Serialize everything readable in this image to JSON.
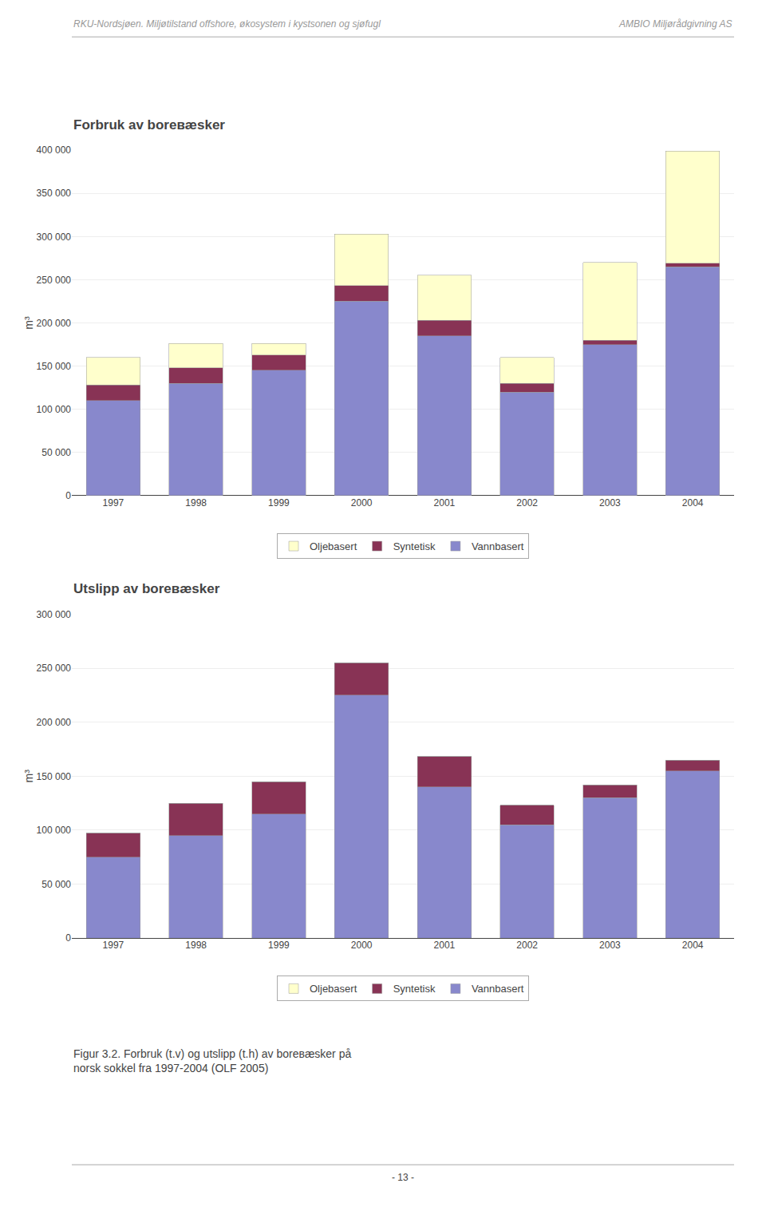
{
  "header_left": "RKU-Nordsjøen. Miljøtilstand offshore, økosystem i kystsonen og sjøfugl",
  "header_right": "AMBIO Miljørådgivning AS",
  "caption": "Figur 3.2. Forbruk (t.v) og utslipp (t.h) av borевæsker på\nnorsk sokkel fra 1997-2004 (OLF 2005)",
  "page_number": "- 13 -",
  "chart_data": [
    {
      "type": "bar",
      "title": "Forbruk av borевæsker",
      "categories": [
        "1997",
        "1998",
        "1999",
        "2000",
        "2001",
        "2002",
        "2003",
        "2004"
      ],
      "series": [
        {
          "name": "Vannbasert",
          "color": "#8888CC",
          "values": [
            110000,
            130000,
            145000,
            225000,
            185000,
            120000,
            175000,
            265000
          ]
        },
        {
          "name": "Syntetisk",
          "color": "#883355",
          "values": [
            18000,
            18000,
            18000,
            18000,
            18000,
            10000,
            5000,
            4000
          ]
        },
        {
          "name": "Oljebasert",
          "color": "#FFFFCC",
          "values": [
            32000,
            28000,
            13000,
            60000,
            52000,
            30000,
            90000,
            130000
          ]
        }
      ],
      "ylabel": "m³",
      "ylim": [
        0,
        400000
      ],
      "yticks": [
        0,
        {
          "value": 50000,
          "label": "50 000"
        },
        {
          "value": 100000,
          "label": "100 000"
        },
        {
          "value": 150000,
          "label": "150 000"
        },
        {
          "value": 200000,
          "label": "200 000"
        },
        {
          "value": 250000,
          "label": "250 000"
        },
        {
          "value": 300000,
          "label": "300 000"
        },
        {
          "value": 350000,
          "label": "350 000"
        },
        {
          "value": 400000,
          "label": "400 000"
        }
      ],
      "grid": true,
      "stacked": true,
      "legend": "bottom"
    },
    {
      "type": "bar",
      "title": "Utslipp av borевæsker",
      "categories": [
        "1997",
        "1998",
        "1999",
        "2000",
        "2001",
        "2002",
        "2003",
        "2004"
      ],
      "series": [
        {
          "name": "Vannbasert",
          "color": "#8888CC",
          "values": [
            75000,
            95000,
            115000,
            225000,
            140000,
            105000,
            130000,
            155000
          ]
        },
        {
          "name": "Syntetisk",
          "color": "#883355",
          "values": [
            22000,
            30000,
            30000,
            30000,
            28000,
            18000,
            12000,
            10000
          ]
        },
        {
          "name": "Oljebasert",
          "color": "#FFFFCC",
          "values": [
            0,
            0,
            0,
            0,
            0,
            0,
            0,
            0
          ]
        }
      ],
      "ylabel": "m³",
      "ylim": [
        0,
        300000
      ],
      "yticks": [
        0,
        {
          "value": 50000,
          "label": "50 000"
        },
        {
          "value": 100000,
          "label": "100 000"
        },
        {
          "value": 150000,
          "label": "150 000"
        },
        {
          "value": 200000,
          "label": "200 000"
        },
        {
          "value": 250000,
          "label": "250 000"
        },
        {
          "value": 300000,
          "label": "300 000"
        }
      ],
      "grid": true,
      "stacked": true,
      "legend": "bottom"
    }
  ]
}
